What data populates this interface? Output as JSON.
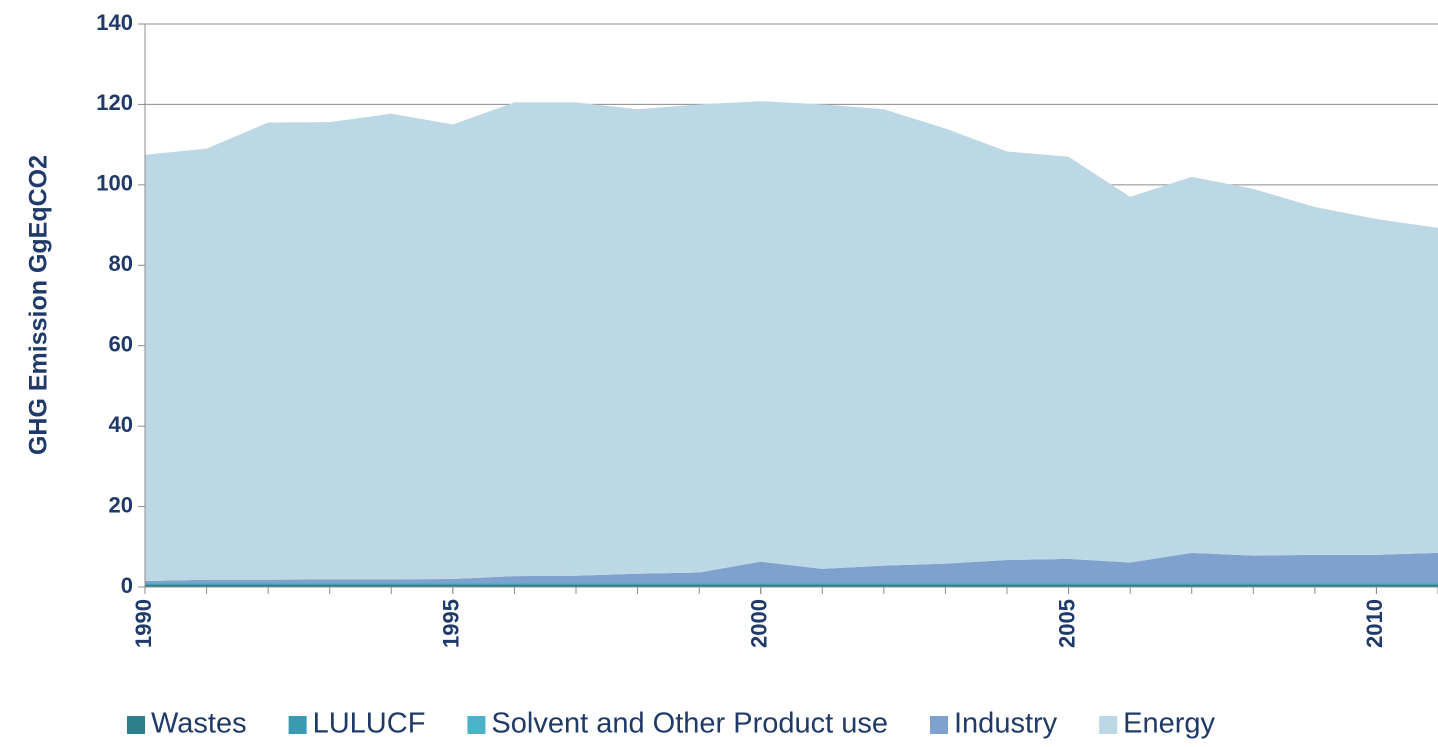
{
  "chart_data": {
    "type": "stacked_area",
    "y_label": "GHG Emission GgEqCO2",
    "x": [
      1990,
      1991,
      1992,
      1993,
      1994,
      1995,
      1996,
      1997,
      1998,
      1999,
      2000,
      2001,
      2002,
      2003,
      2004,
      2005,
      2006,
      2007,
      2008,
      2009,
      2010,
      2011
    ],
    "series": [
      {
        "name": "Wastes",
        "color": "#2e7f8c",
        "values": [
          0.6,
          0.6,
          0.6,
          0.6,
          0.6,
          0.6,
          0.6,
          0.6,
          0.6,
          0.6,
          0.6,
          0.6,
          0.6,
          0.6,
          0.6,
          0.6,
          0.6,
          0.6,
          0.6,
          0.6,
          0.6,
          0.6
        ]
      },
      {
        "name": "LULUCF",
        "color": "#3a9bb0",
        "values": [
          0.3,
          0.3,
          0.3,
          0.3,
          0.3,
          0.3,
          0.3,
          0.3,
          0.3,
          0.3,
          0.3,
          0.3,
          0.3,
          0.3,
          0.3,
          0.3,
          0.3,
          0.3,
          0.3,
          0.3,
          0.3,
          0.3
        ]
      },
      {
        "name": "Solvent and Other Product use",
        "color": "#4bb3c8",
        "values": [
          0.1,
          0.1,
          0.1,
          0.1,
          0.1,
          0.1,
          0.1,
          0.1,
          0.1,
          0.1,
          0.1,
          0.1,
          0.1,
          0.1,
          0.1,
          0.1,
          0.1,
          0.1,
          0.1,
          0.1,
          0.1,
          0.1
        ]
      },
      {
        "name": "Industry",
        "color": "#7fa1cd",
        "values": [
          0.5,
          0.8,
          0.8,
          0.9,
          0.9,
          1.0,
          1.7,
          1.8,
          2.3,
          2.6,
          5.3,
          3.5,
          4.3,
          4.8,
          5.7,
          6.0,
          5.1,
          7.5,
          6.8,
          7.0,
          7.0,
          7.5
        ]
      },
      {
        "name": "Energy",
        "color": "#bcd8e4",
        "values": [
          106.0,
          107.2,
          113.7,
          113.7,
          115.8,
          113.0,
          117.8,
          117.7,
          115.5,
          116.4,
          114.5,
          115.5,
          113.5,
          108.2,
          101.6,
          100.0,
          90.9,
          93.5,
          91.2,
          86.5,
          83.5,
          80.8
        ]
      }
    ],
    "xlim": [
      1990,
      2011
    ],
    "xticks": [
      1990,
      1995,
      2000,
      2005,
      2010
    ],
    "ylim": [
      0,
      140
    ],
    "yticks": [
      0,
      20,
      40,
      60,
      80,
      100,
      120,
      140
    ],
    "grid": true,
    "legend": "bottom"
  }
}
